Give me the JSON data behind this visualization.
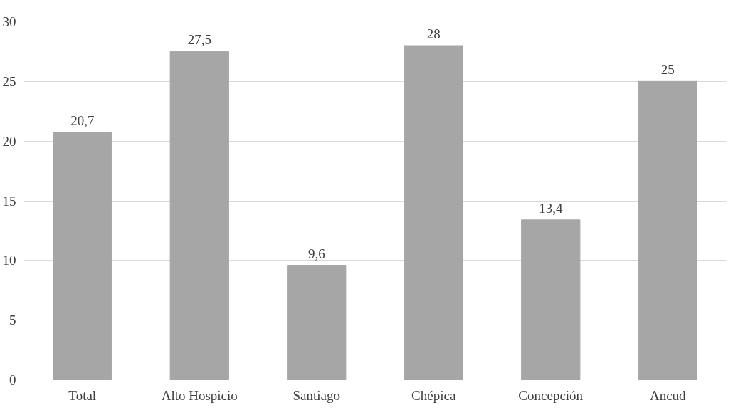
{
  "chart_data": {
    "type": "bar",
    "categories": [
      "Total",
      "Alto Hospicio",
      "Santiago",
      "Chépica",
      "Concepción",
      "Ancud"
    ],
    "values": [
      20.7,
      27.5,
      9.6,
      28,
      13.4,
      25
    ],
    "value_labels": [
      "20,7",
      "27,5",
      "9,6",
      "28",
      "13,4",
      "25"
    ],
    "color": "#a6a6a6",
    "ylim": [
      0,
      30
    ],
    "yticks": [
      0,
      5,
      10,
      15,
      20,
      25,
      30
    ],
    "grid": "y"
  }
}
